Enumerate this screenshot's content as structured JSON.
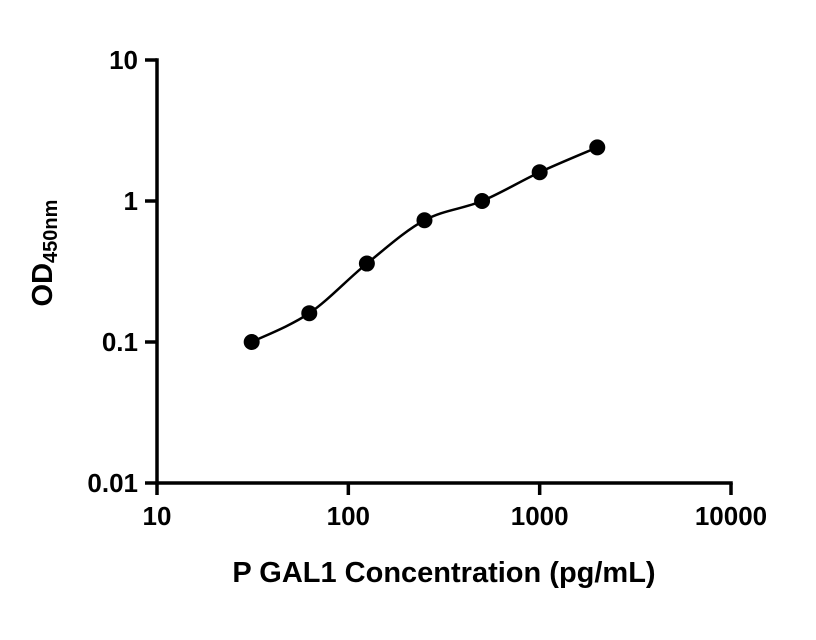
{
  "chart_data": {
    "type": "scatter",
    "title": "",
    "xlabel": "P GAL1 Concentration (pg/mL)",
    "ylabel_main": "OD",
    "ylabel_sub": "450nm",
    "x_scale": "log",
    "y_scale": "log",
    "xlim": [
      10,
      10000
    ],
    "ylim": [
      0.01,
      10
    ],
    "x_ticks": [
      {
        "value": 10,
        "label": "10"
      },
      {
        "value": 100,
        "label": "100"
      },
      {
        "value": 1000,
        "label": "1000"
      },
      {
        "value": 10000,
        "label": "10000"
      }
    ],
    "y_ticks": [
      {
        "value": 0.01,
        "label": "0.01"
      },
      {
        "value": 0.1,
        "label": "0.1"
      },
      {
        "value": 1,
        "label": "1"
      },
      {
        "value": 10,
        "label": "10"
      }
    ],
    "points": [
      {
        "x": 31.25,
        "y": 0.1
      },
      {
        "x": 62.5,
        "y": 0.16
      },
      {
        "x": 125,
        "y": 0.36
      },
      {
        "x": 250,
        "y": 0.73
      },
      {
        "x": 500,
        "y": 1.0
      },
      {
        "x": 1000,
        "y": 1.6
      },
      {
        "x": 2000,
        "y": 2.4
      }
    ],
    "has_fit_curve": true,
    "legend": [],
    "grid": false,
    "marker_color": "#000000",
    "line_color": "#000000",
    "axis_color": "#000000"
  }
}
